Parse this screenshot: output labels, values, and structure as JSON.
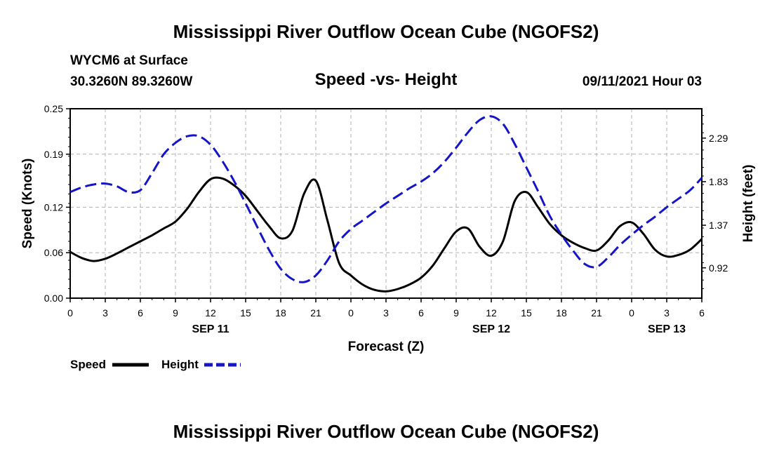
{
  "header": {
    "title_top": "Mississippi River Outflow Ocean Cube (NGOFS2)",
    "station": "WYCM6 at Surface",
    "coords": "30.3260N  89.3260W",
    "subtitle": "Speed -vs- Height",
    "datetime": "09/11/2021 Hour 03",
    "title_bottom": "Mississippi River Outflow Ocean Cube (NGOFS2)"
  },
  "legend": {
    "speed_label": "Speed",
    "height_label": "Height"
  },
  "colors": {
    "speed": "#000000",
    "height": "#1515c8",
    "grid": "#b0b0b0"
  },
  "chart_data": {
    "type": "line",
    "xlabel": "Forecast (Z)",
    "ylabel": "Speed (Knots)",
    "y2label": "Height (feet)",
    "x_range_hours": [
      0,
      54
    ],
    "x_ticks": [
      {
        "h": 0,
        "label": "0"
      },
      {
        "h": 3,
        "label": "3"
      },
      {
        "h": 6,
        "label": "6"
      },
      {
        "h": 9,
        "label": "9"
      },
      {
        "h": 12,
        "label": "12"
      },
      {
        "h": 15,
        "label": "15"
      },
      {
        "h": 18,
        "label": "18"
      },
      {
        "h": 21,
        "label": "21"
      },
      {
        "h": 24,
        "label": "0"
      },
      {
        "h": 27,
        "label": "3"
      },
      {
        "h": 30,
        "label": "6"
      },
      {
        "h": 33,
        "label": "9"
      },
      {
        "h": 36,
        "label": "12"
      },
      {
        "h": 39,
        "label": "15"
      },
      {
        "h": 42,
        "label": "18"
      },
      {
        "h": 45,
        "label": "21"
      },
      {
        "h": 48,
        "label": "0"
      },
      {
        "h": 51,
        "label": "3"
      },
      {
        "h": 54,
        "label": "6"
      }
    ],
    "day_labels": [
      {
        "h": 12,
        "label": "SEP 11"
      },
      {
        "h": 36,
        "label": "SEP 12"
      },
      {
        "h": 51,
        "label": "SEP 13"
      }
    ],
    "ylim": [
      0,
      0.25
    ],
    "y_ticks": [
      "0.00",
      "0.06",
      "0.12",
      "0.19",
      "0.25"
    ],
    "y2lim": [
      0.6,
      2.6
    ],
    "y2_ticks": [
      "0.92",
      "1.37",
      "1.83",
      "2.29"
    ],
    "series": [
      {
        "name": "Speed",
        "axis": "left",
        "x": [
          0,
          1,
          2,
          3,
          4,
          5,
          6,
          7,
          8,
          9,
          10,
          11,
          12,
          13,
          14,
          15,
          16,
          17,
          18,
          19,
          20,
          21,
          22,
          23,
          24,
          25,
          26,
          27,
          28,
          29,
          30,
          31,
          32,
          33,
          34,
          35,
          36,
          37,
          38,
          39,
          40,
          41,
          42,
          43,
          44,
          45,
          46,
          47,
          48,
          49,
          50,
          51,
          52,
          53,
          54
        ],
        "values": [
          0.061,
          0.053,
          0.049,
          0.052,
          0.059,
          0.067,
          0.075,
          0.083,
          0.092,
          0.101,
          0.118,
          0.14,
          0.157,
          0.158,
          0.149,
          0.135,
          0.115,
          0.095,
          0.079,
          0.089,
          0.138,
          0.155,
          0.102,
          0.046,
          0.03,
          0.018,
          0.011,
          0.009,
          0.012,
          0.018,
          0.027,
          0.043,
          0.066,
          0.088,
          0.092,
          0.068,
          0.056,
          0.075,
          0.128,
          0.14,
          0.12,
          0.098,
          0.083,
          0.073,
          0.066,
          0.063,
          0.076,
          0.095,
          0.1,
          0.085,
          0.064,
          0.055,
          0.057,
          0.064,
          0.078
        ]
      },
      {
        "name": "Height",
        "axis": "right",
        "x": [
          0,
          1,
          2,
          3,
          4,
          5,
          6,
          7,
          8,
          9,
          10,
          11,
          12,
          13,
          14,
          15,
          16,
          17,
          18,
          19,
          20,
          21,
          22,
          23,
          24,
          25,
          26,
          27,
          28,
          29,
          30,
          31,
          32,
          33,
          34,
          35,
          36,
          37,
          38,
          39,
          40,
          41,
          42,
          43,
          44,
          45,
          46,
          47,
          48,
          49,
          50,
          51,
          52,
          53,
          54
        ],
        "values": [
          1.72,
          1.77,
          1.8,
          1.81,
          1.78,
          1.72,
          1.74,
          1.92,
          2.12,
          2.24,
          2.31,
          2.31,
          2.22,
          2.05,
          1.84,
          1.6,
          1.35,
          1.11,
          0.91,
          0.8,
          0.77,
          0.84,
          1.0,
          1.2,
          1.33,
          1.42,
          1.51,
          1.6,
          1.68,
          1.76,
          1.83,
          1.92,
          2.04,
          2.19,
          2.35,
          2.48,
          2.52,
          2.44,
          2.23,
          1.98,
          1.73,
          1.47,
          1.27,
          1.1,
          0.96,
          0.93,
          1.03,
          1.16,
          1.27,
          1.37,
          1.46,
          1.56,
          1.65,
          1.74,
          1.87
        ]
      }
    ]
  }
}
